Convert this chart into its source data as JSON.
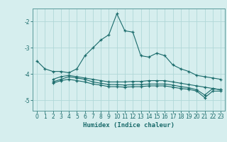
{
  "xlabel": "Humidex (Indice chaleur)",
  "ylabel": "",
  "bg_color": "#d6eeee",
  "grid_color": "#b0d8d8",
  "line_color": "#1a6b6b",
  "spine_color": "#5a9a9a",
  "ylim": [
    -5.4,
    -1.5
  ],
  "xlim": [
    -0.5,
    23.5
  ],
  "yticks": [
    -5,
    -4,
    -3,
    -2
  ],
  "xticks": [
    0,
    1,
    2,
    3,
    4,
    5,
    6,
    7,
    8,
    9,
    10,
    11,
    12,
    13,
    14,
    15,
    16,
    17,
    18,
    19,
    20,
    21,
    22,
    23
  ],
  "series": [
    [
      0,
      -3.5,
      1,
      -3.8,
      2,
      -3.9,
      3,
      -3.9,
      4,
      -3.95,
      5,
      -3.8,
      6,
      -3.3,
      7,
      -3.0,
      8,
      -2.7,
      9,
      -2.5,
      10,
      -1.7,
      11,
      -2.35,
      12,
      -2.4,
      13,
      -3.3,
      14,
      -3.35,
      15,
      -3.2,
      16,
      -3.3,
      17,
      -3.65,
      18,
      -3.8,
      19,
      -3.9,
      20,
      -4.05,
      21,
      -4.1,
      22,
      -4.15,
      23,
      -4.2
    ],
    [
      2,
      -4.2,
      3,
      -4.1,
      4,
      -4.05,
      5,
      -4.1,
      6,
      -4.15,
      7,
      -4.2,
      8,
      -4.25,
      9,
      -4.3,
      10,
      -4.3,
      11,
      -4.3,
      12,
      -4.28,
      13,
      -4.28,
      14,
      -4.25,
      15,
      -4.25,
      16,
      -4.25,
      17,
      -4.3,
      18,
      -4.35,
      19,
      -4.4,
      20,
      -4.45,
      21,
      -4.5,
      22,
      -4.55,
      23,
      -4.6
    ],
    [
      2,
      -4.3,
      3,
      -4.2,
      4,
      -4.1,
      5,
      -4.15,
      6,
      -4.2,
      7,
      -4.3,
      8,
      -4.35,
      9,
      -4.4,
      10,
      -4.4,
      11,
      -4.42,
      12,
      -4.4,
      13,
      -4.4,
      14,
      -4.38,
      15,
      -4.38,
      16,
      -4.38,
      17,
      -4.42,
      18,
      -4.48,
      19,
      -4.52,
      20,
      -4.6,
      21,
      -4.8,
      22,
      -4.55,
      23,
      -4.6
    ],
    [
      2,
      -4.35,
      3,
      -4.25,
      4,
      -4.2,
      5,
      -4.25,
      6,
      -4.3,
      7,
      -4.38,
      8,
      -4.42,
      9,
      -4.48,
      10,
      -4.48,
      11,
      -4.5,
      12,
      -4.48,
      13,
      -4.48,
      14,
      -4.45,
      15,
      -4.45,
      16,
      -4.45,
      17,
      -4.5,
      18,
      -4.55,
      19,
      -4.58,
      20,
      -4.65,
      21,
      -4.9,
      22,
      -4.65,
      23,
      -4.65
    ]
  ]
}
